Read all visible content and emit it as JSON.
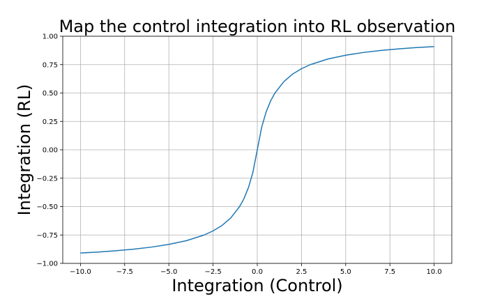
{
  "chart_data": {
    "type": "line",
    "title": "Map the control integration into RL observation",
    "xlabel": "Integration (Control)",
    "ylabel": "Integration (RL)",
    "xlim": [
      -11,
      11
    ],
    "ylim": [
      -1.0,
      1.0
    ],
    "grid": true,
    "x_ticks": [
      -10.0,
      -7.5,
      -5.0,
      -2.5,
      0.0,
      2.5,
      5.0,
      7.5,
      10.0
    ],
    "x_tick_labels": [
      "−10.0",
      "−7.5",
      "−5.0",
      "−2.5",
      "0.0",
      "2.5",
      "5.0",
      "7.5",
      "10.0"
    ],
    "y_ticks": [
      -1.0,
      -0.75,
      -0.5,
      -0.25,
      0.0,
      0.25,
      0.5,
      0.75,
      1.0
    ],
    "y_tick_labels": [
      "−1.00",
      "−0.75",
      "−0.50",
      "−0.25",
      "0.00",
      "0.25",
      "0.50",
      "0.75",
      "1.00"
    ],
    "series": [
      {
        "color": "#1f77b4",
        "x": [
          -10,
          -9,
          -8,
          -7,
          -6,
          -5,
          -4,
          -3,
          -2.5,
          -2,
          -1.5,
          -1,
          -0.75,
          -0.5,
          -0.25,
          0,
          0.25,
          0.5,
          0.75,
          1,
          1.5,
          2,
          2.5,
          3,
          4,
          5,
          6,
          7,
          8,
          9,
          10
        ],
        "y": [
          -0.909,
          -0.9,
          -0.889,
          -0.875,
          -0.857,
          -0.833,
          -0.8,
          -0.75,
          -0.714,
          -0.667,
          -0.6,
          -0.5,
          -0.429,
          -0.333,
          -0.2,
          0.0,
          0.2,
          0.333,
          0.429,
          0.5,
          0.6,
          0.667,
          0.714,
          0.75,
          0.8,
          0.833,
          0.857,
          0.875,
          0.889,
          0.9,
          0.909
        ]
      }
    ]
  }
}
